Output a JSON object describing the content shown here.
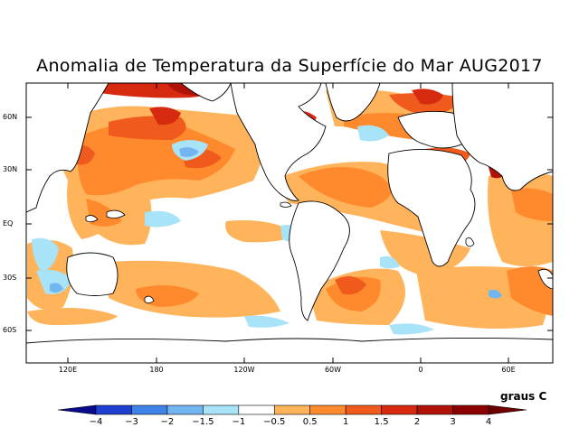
{
  "title": "Anomalia de Temperatura da Superfície do Mar AUG2017",
  "units": "graus C",
  "latitude_labels": [
    "60N",
    "30N",
    "EQ",
    "30S",
    "60S"
  ],
  "longitude_labels": [
    "120E",
    "180",
    "120W",
    "60W",
    "0",
    "60E"
  ],
  "colorbar": {
    "labels": [
      "−4",
      "−3",
      "−2",
      "−1.5",
      "−1",
      "−0.5",
      "0.5",
      "1",
      "1.5",
      "2",
      "3",
      "4"
    ],
    "colors": [
      "#0a0a8c",
      "#1f3fd0",
      "#3f82e8",
      "#73b5f0",
      "#a9e3f7",
      "#ffffff",
      "#ffb35a",
      "#ff8a2e",
      "#f05a1c",
      "#d62a10",
      "#b01208",
      "#8c0000",
      "#6e0000"
    ]
  },
  "colors": {
    "land": "#ffffff",
    "coast": "#000000",
    "background": "#ffffff"
  }
}
